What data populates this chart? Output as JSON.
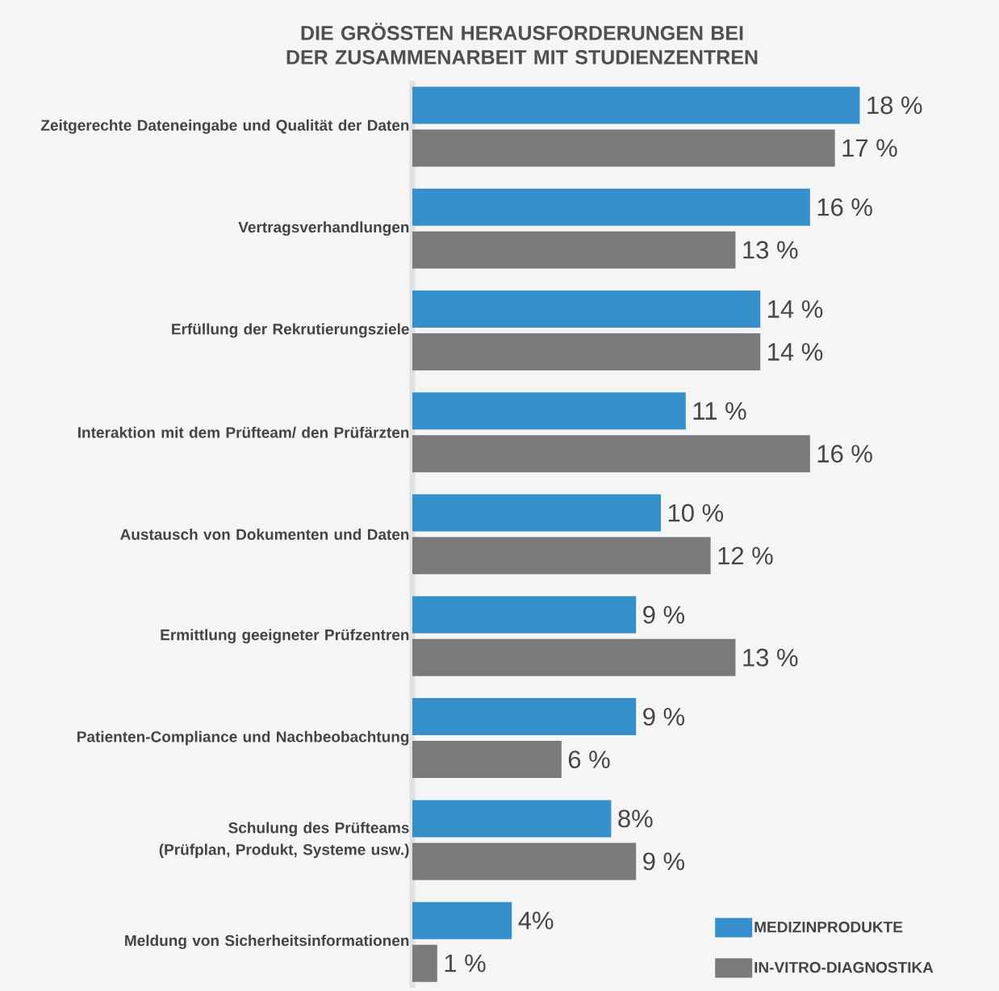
{
  "chart_data": {
    "type": "bar",
    "orientation": "horizontal",
    "title": "DIE GRÖSSTEN HERAUSFORDERUNGEN BEI DER ZUSAMMENARBEIT MIT STUDIENZENTREN",
    "categories": [
      "Zeitgerechte Dateneingabe und Qualität der Daten",
      "Vertragsverhandlungen",
      "Erfüllung der Rekrutierungsziele",
      "Interaktion mit dem Prüfteam/ den Prüfärzten",
      "Austausch von Dokumenten und Daten",
      "Ermittlung geeigneter Prüfzentren",
      "Patienten-Compliance und Nachbeobachtung",
      "Schulung des Prüfteams (Prüfplan, Produkt, Systeme usw.)",
      "Meldung von Sicherheitsinformationen"
    ],
    "series": [
      {
        "name": "MEDIZINPRODUKTE",
        "color": "#358fca",
        "values": [
          18,
          16,
          14,
          11,
          10,
          9,
          9,
          8,
          4
        ],
        "value_labels": [
          "18 %",
          "16 %",
          "14 %",
          "11 %",
          "10 %",
          "9 %",
          "9 %",
          "8%",
          "4%"
        ]
      },
      {
        "name": "IN-VITRO-DIAGNOSTIKA",
        "color": "#7a7a7d",
        "values": [
          17,
          13,
          14,
          16,
          12,
          13,
          6,
          9,
          1
        ],
        "value_labels": [
          "17 %",
          "13 %",
          "14 %",
          "16 %",
          "12 %",
          "13 %",
          "6 %",
          "9 %",
          "1 %"
        ]
      }
    ],
    "tick_labels": "y",
    "legend": "bottom right"
  }
}
